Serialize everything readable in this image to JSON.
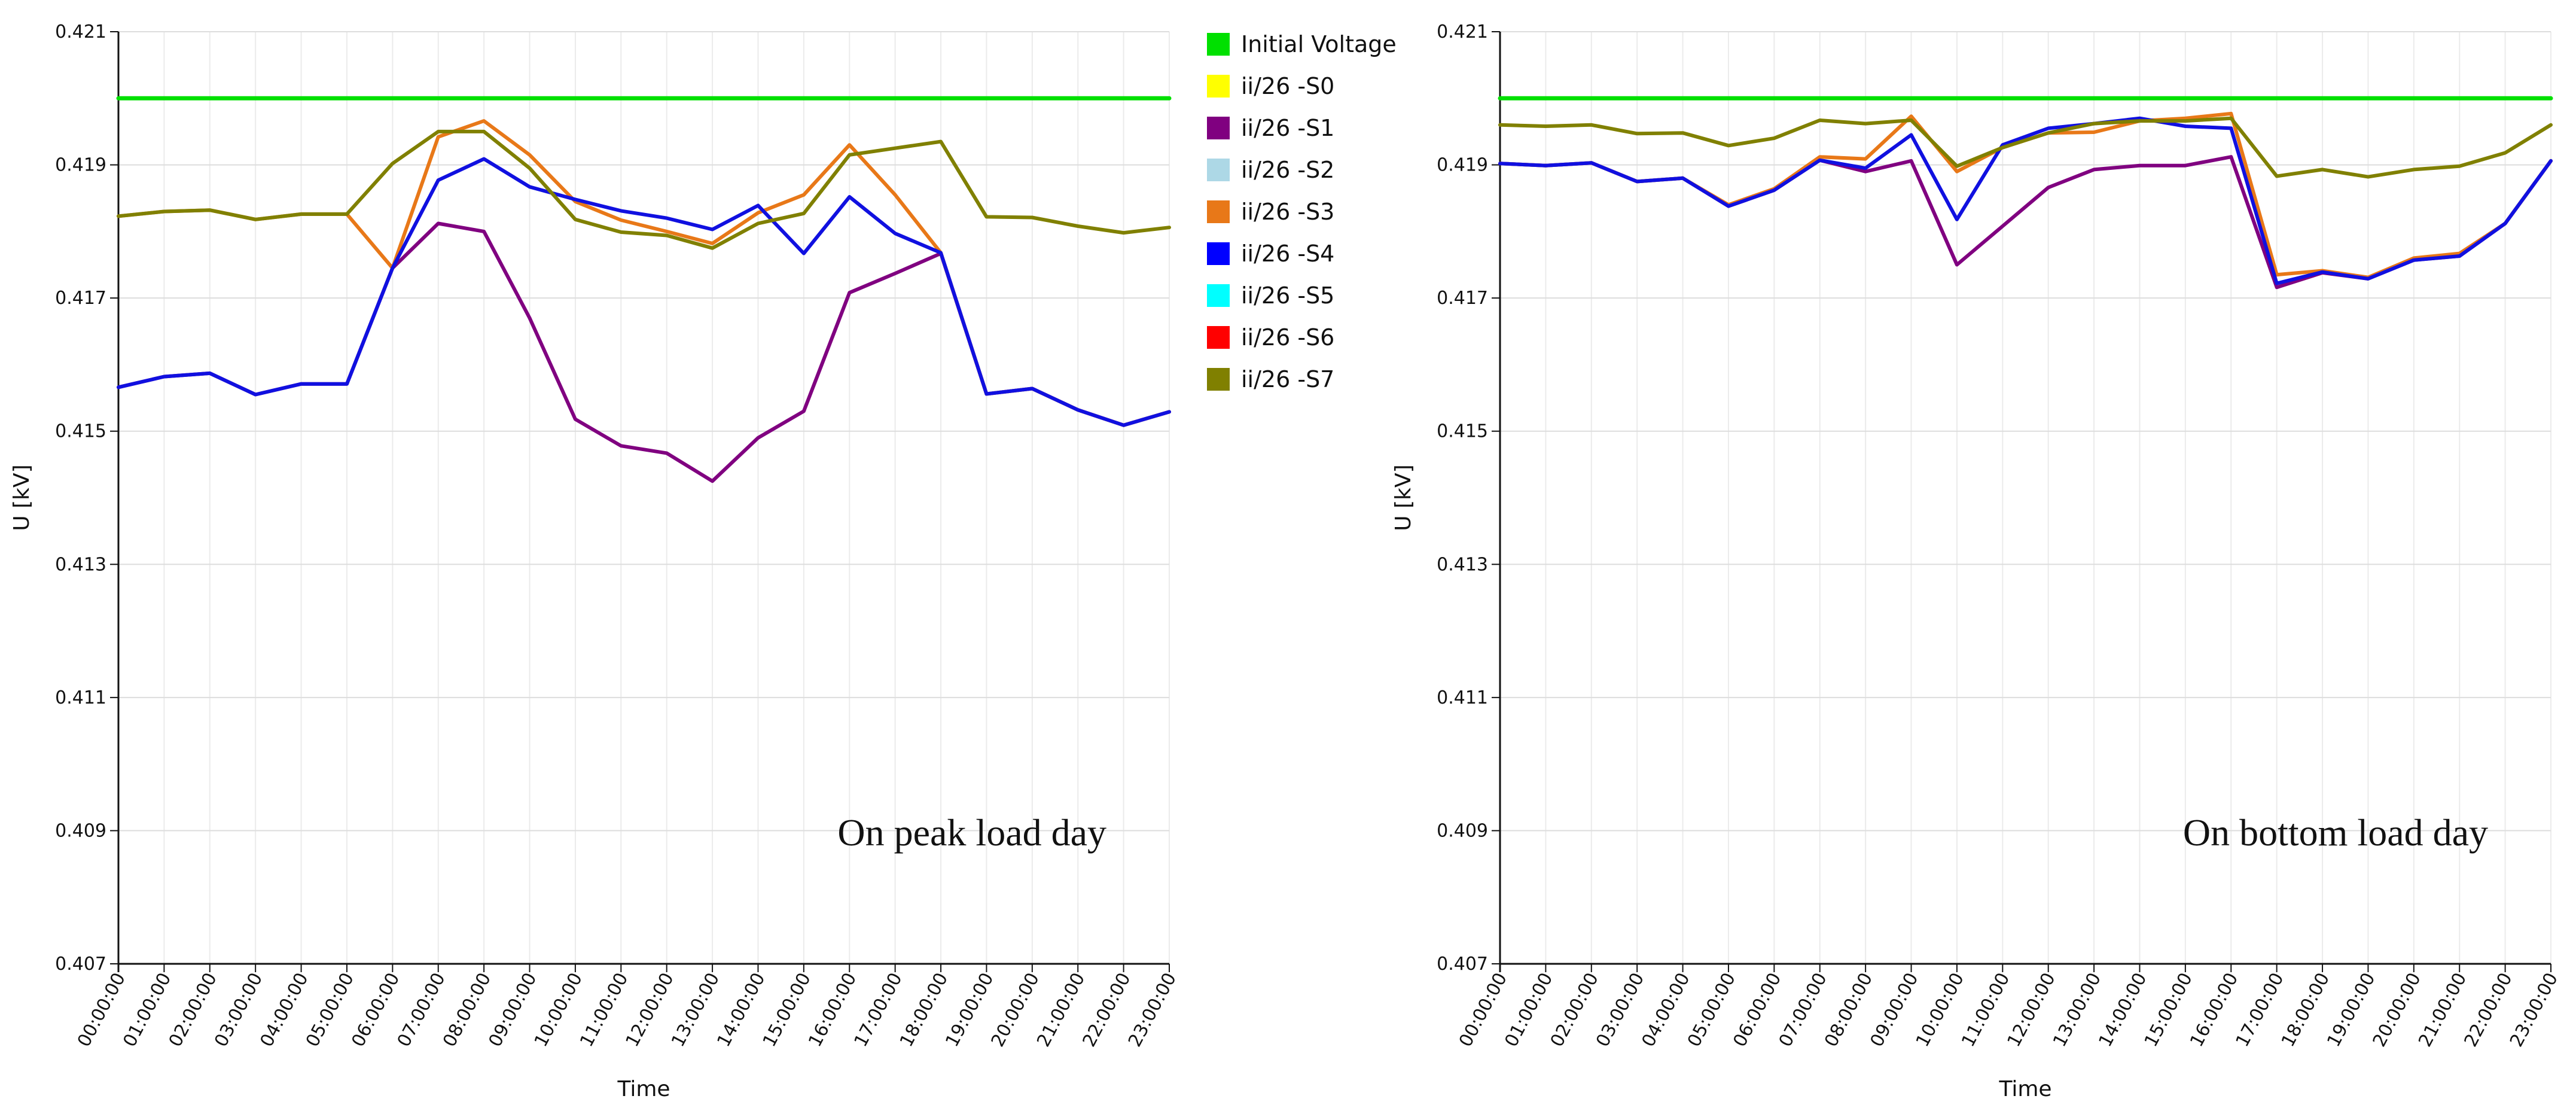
{
  "chart_data": [
    {
      "type": "line",
      "xlabel": "Time",
      "ylabel": "U [kV]",
      "ylim": [
        0.407,
        0.421
      ],
      "yticks": [
        "0.407",
        "0.409",
        "0.411",
        "0.413",
        "0.415",
        "0.417",
        "0.419",
        "0.421"
      ],
      "x": [
        "00:00:00",
        "01:00:00",
        "02:00:00",
        "03:00:00",
        "04:00:00",
        "05:00:00",
        "06:00:00",
        "07:00:00",
        "08:00:00",
        "09:00:00",
        "10:00:00",
        "11:00:00",
        "12:00:00",
        "13:00:00",
        "14:00:00",
        "15:00:00",
        "16:00:00",
        "17:00:00",
        "18:00:00",
        "19:00:00",
        "20:00:00",
        "21:00:00",
        "22:00:00",
        "23:00:00"
      ],
      "annotation": "On peak load day",
      "grid": true,
      "series": [
        {
          "name": "Initial Voltage",
          "color": "#00e000",
          "values": [
            0.42,
            0.42,
            0.42,
            0.42,
            0.42,
            0.42,
            0.42,
            0.42,
            0.42,
            0.42,
            0.42,
            0.42,
            0.42,
            0.42,
            0.42,
            0.42,
            0.42,
            0.42,
            0.42,
            0.42,
            0.42,
            0.42,
            0.42,
            0.42
          ]
        },
        {
          "name": "ii/26  -S1",
          "color": "#800080",
          "values": [
            0.41566,
            0.41582,
            0.41587,
            0.41555,
            0.41571,
            0.41571,
            0.41745,
            0.41812,
            0.418,
            0.4167,
            0.41518,
            0.41478,
            0.41467,
            0.41425,
            0.4149,
            0.4153,
            0.41708,
            0.41737,
            0.41767,
            0.41556,
            0.41564,
            0.41532,
            0.41509,
            0.41529
          ]
        },
        {
          "name": "ii/26  -S3",
          "color": "#e87818",
          "values": [
            0.41823,
            0.4183,
            0.41832,
            0.41818,
            0.41826,
            0.41826,
            0.41745,
            0.41942,
            0.41966,
            0.41915,
            0.41845,
            0.41817,
            0.418,
            0.41782,
            0.41828,
            0.41855,
            0.4193,
            0.41855,
            0.41768,
            0.41556,
            0.41564,
            0.41532,
            0.41509,
            0.41529
          ]
        },
        {
          "name": "ii/26  -S4",
          "color": "#1010e0",
          "values": [
            0.41566,
            0.41582,
            0.41587,
            0.41555,
            0.41571,
            0.41571,
            0.41745,
            0.41877,
            0.41909,
            0.41867,
            0.41848,
            0.41831,
            0.4182,
            0.41803,
            0.41839,
            0.41767,
            0.41852,
            0.41797,
            0.41768,
            0.41556,
            0.41564,
            0.41532,
            0.41509,
            0.41529
          ]
        },
        {
          "name": "ii/26  -S7",
          "color": "#808000",
          "values": [
            0.41823,
            0.4183,
            0.41832,
            0.41818,
            0.41826,
            0.41826,
            0.41902,
            0.4195,
            0.4195,
            0.41895,
            0.41818,
            0.41799,
            0.41794,
            0.41775,
            0.41812,
            0.41827,
            0.41915,
            0.41925,
            0.41935,
            0.41822,
            0.41821,
            0.41808,
            0.41798,
            0.41806
          ]
        }
      ]
    },
    {
      "type": "line",
      "xlabel": "Time",
      "ylabel": "U [kV]",
      "ylim": [
        0.407,
        0.421
      ],
      "yticks": [
        "0.407",
        "0.409",
        "0.411",
        "0.413",
        "0.415",
        "0.417",
        "0.419",
        "0.421"
      ],
      "x": [
        "00:00:00",
        "01:00:00",
        "02:00:00",
        "03:00:00",
        "04:00:00",
        "05:00:00",
        "06:00:00",
        "07:00:00",
        "08:00:00",
        "09:00:00",
        "10:00:00",
        "11:00:00",
        "12:00:00",
        "13:00:00",
        "14:00:00",
        "15:00:00",
        "16:00:00",
        "17:00:00",
        "18:00:00",
        "19:00:00",
        "20:00:00",
        "21:00:00",
        "22:00:00",
        "23:00:00"
      ],
      "annotation": "On bottom load day",
      "grid": true,
      "series": [
        {
          "name": "Initial Voltage",
          "color": "#00e000",
          "values": [
            0.42,
            0.42,
            0.42,
            0.42,
            0.42,
            0.42,
            0.42,
            0.42,
            0.42,
            0.42,
            0.42,
            0.42,
            0.42,
            0.42,
            0.42,
            0.42,
            0.42,
            0.42,
            0.42,
            0.42,
            0.42,
            0.42,
            0.42,
            0.42
          ]
        },
        {
          "name": "ii/26  -S1",
          "color": "#800080",
          "values": [
            0.41902,
            0.41899,
            0.41903,
            0.41875,
            0.4188,
            0.41838,
            0.41862,
            0.41907,
            0.4189,
            0.41906,
            0.4175,
            0.41808,
            0.41866,
            0.41893,
            0.41899,
            0.41899,
            0.41912,
            0.41716,
            0.41738,
            0.41729,
            0.41757,
            0.41763,
            0.41812,
            0.41906
          ]
        },
        {
          "name": "ii/26  -S3",
          "color": "#e87818",
          "values": [
            0.41902,
            0.41899,
            0.41903,
            0.41875,
            0.4188,
            0.4184,
            0.41864,
            0.41912,
            0.41909,
            0.41973,
            0.4189,
            0.41926,
            0.41948,
            0.41949,
            0.41966,
            0.4197,
            0.41977,
            0.41735,
            0.41741,
            0.41731,
            0.4176,
            0.41767,
            0.41812,
            0.41906
          ]
        },
        {
          "name": "ii/26  -S4",
          "color": "#1010e0",
          "values": [
            0.41902,
            0.41899,
            0.41903,
            0.41875,
            0.4188,
            0.41838,
            0.41862,
            0.41907,
            0.41895,
            0.41945,
            0.41818,
            0.4193,
            0.41955,
            0.41962,
            0.4197,
            0.41958,
            0.41955,
            0.41722,
            0.41739,
            0.41729,
            0.41757,
            0.41763,
            0.41812,
            0.41906
          ]
        },
        {
          "name": "ii/26  -S7",
          "color": "#808000",
          "values": [
            0.4196,
            0.41958,
            0.4196,
            0.41947,
            0.41948,
            0.41929,
            0.4194,
            0.41967,
            0.41962,
            0.41967,
            0.41898,
            0.41926,
            0.41948,
            0.41962,
            0.41966,
            0.41966,
            0.4197,
            0.41883,
            0.41893,
            0.41882,
            0.41893,
            0.41898,
            0.41918,
            0.4196
          ]
        }
      ]
    }
  ],
  "legend": {
    "position": "between-charts",
    "entries": [
      {
        "label": "Initial Voltage",
        "color": "#00e000"
      },
      {
        "label": "ii/26  -S0",
        "color": "#ffff00"
      },
      {
        "label": "ii/26  -S1",
        "color": "#800080"
      },
      {
        "label": "ii/26  -S2",
        "color": "#add8e6"
      },
      {
        "label": "ii/26  -S3",
        "color": "#e87818"
      },
      {
        "label": "ii/26  -S4",
        "color": "#0000ff"
      },
      {
        "label": "ii/26  -S5",
        "color": "#00ffff"
      },
      {
        "label": "ii/26  -S6",
        "color": "#ff0000"
      },
      {
        "label": "ii/26  -S7",
        "color": "#808000"
      }
    ]
  }
}
